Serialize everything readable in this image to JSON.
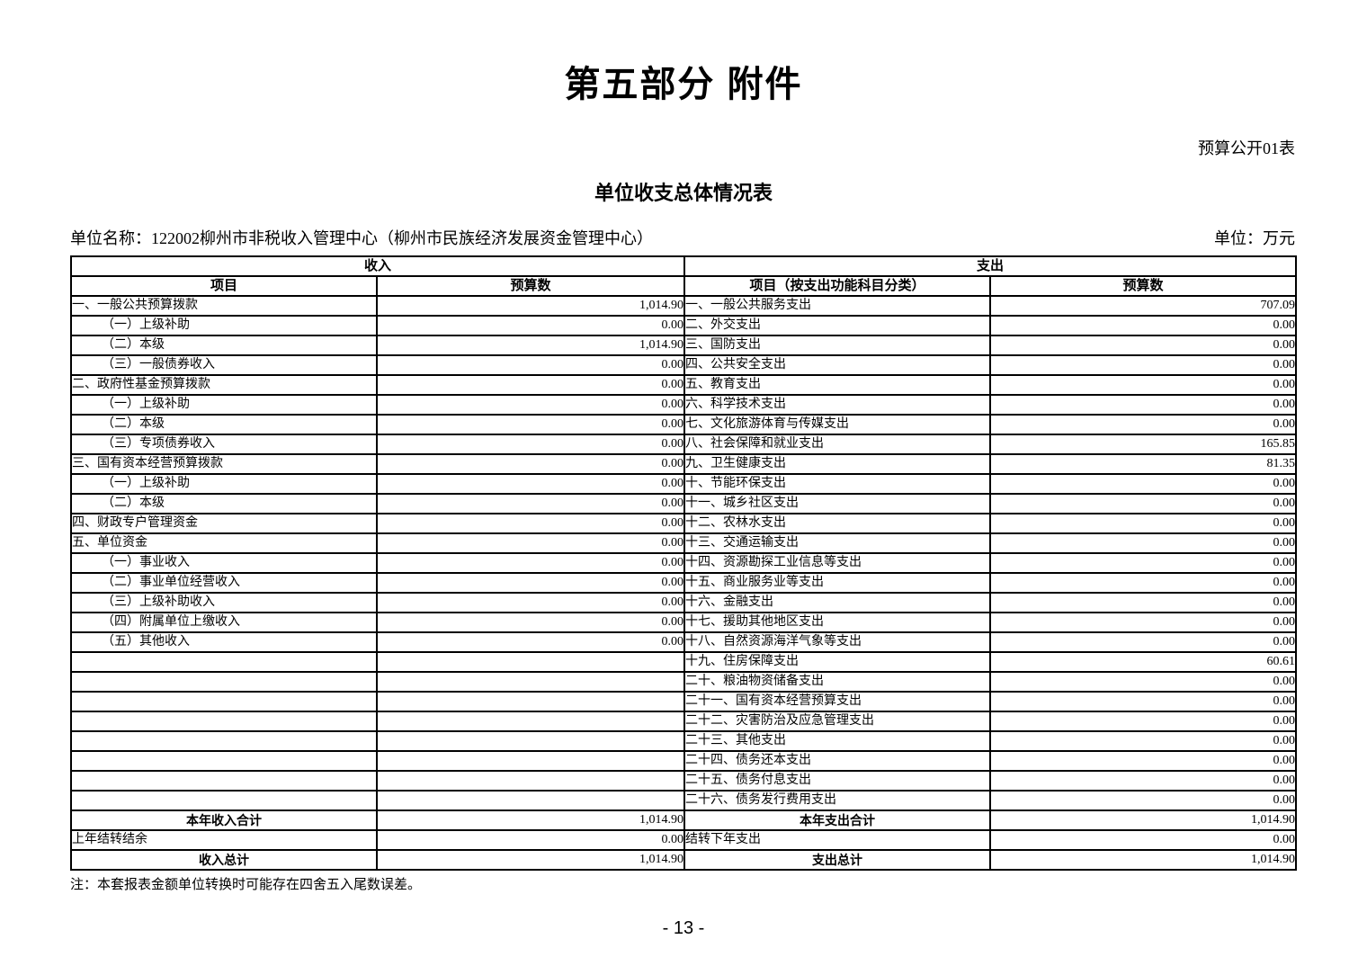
{
  "doc": {
    "section_title": "第五部分  附件",
    "form_label": "预算公开01表",
    "table_title": "单位收支总体情况表",
    "unit_name": "单位名称：122002柳州市非税收入管理中心（柳州市民族经济发展资金管理中心）",
    "unit_of_measure": "单位：万元",
    "footnote": "注：本套报表金额单位转换时可能存在四舍五入尾数误差。",
    "page_number": "- 13 -"
  },
  "table": {
    "sections": {
      "income": "收入",
      "expense": "支出"
    },
    "columns": {
      "income_item": "项目",
      "income_budget": "预算数",
      "expense_item": "项目（按支出功能科目分类）",
      "expense_budget": "预算数"
    },
    "rows": [
      {
        "income_item": "一、一般公共预算拨款",
        "income_value": "1,014.90",
        "expense_item": "一、一般公共服务支出",
        "expense_value": "707.09"
      },
      {
        "income_item": "（一）上级补助",
        "income_value": "0.00",
        "expense_item": "二、外交支出",
        "expense_value": "0.00"
      },
      {
        "income_item": "（二）本级",
        "income_value": "1,014.90",
        "expense_item": "三、国防支出",
        "expense_value": "0.00"
      },
      {
        "income_item": "（三）一般债券收入",
        "income_value": "0.00",
        "expense_item": "四、公共安全支出",
        "expense_value": "0.00"
      },
      {
        "income_item": "二、政府性基金预算拨款",
        "income_value": "0.00",
        "expense_item": "五、教育支出",
        "expense_value": "0.00"
      },
      {
        "income_item": "（一）上级补助",
        "income_value": "0.00",
        "expense_item": "六、科学技术支出",
        "expense_value": "0.00"
      },
      {
        "income_item": "（二）本级",
        "income_value": "0.00",
        "expense_item": "七、文化旅游体育与传媒支出",
        "expense_value": "0.00"
      },
      {
        "income_item": "（三）专项债券收入",
        "income_value": "0.00",
        "expense_item": "八、社会保障和就业支出",
        "expense_value": "165.85"
      },
      {
        "income_item": "三、国有资本经营预算拨款",
        "income_value": "0.00",
        "expense_item": "九、卫生健康支出",
        "expense_value": "81.35"
      },
      {
        "income_item": "（一）上级补助",
        "income_value": "0.00",
        "expense_item": "十、节能环保支出",
        "expense_value": "0.00"
      },
      {
        "income_item": "（二）本级",
        "income_value": "0.00",
        "expense_item": "十一、城乡社区支出",
        "expense_value": "0.00"
      },
      {
        "income_item": "四、财政专户管理资金",
        "income_value": "0.00",
        "expense_item": "十二、农林水支出",
        "expense_value": "0.00"
      },
      {
        "income_item": "五、单位资金",
        "income_value": "0.00",
        "expense_item": "十三、交通运输支出",
        "expense_value": "0.00"
      },
      {
        "income_item": "（一）事业收入",
        "income_value": "0.00",
        "expense_item": "十四、资源勘探工业信息等支出",
        "expense_value": "0.00"
      },
      {
        "income_item": "（二）事业单位经营收入",
        "income_value": "0.00",
        "expense_item": "十五、商业服务业等支出",
        "expense_value": "0.00"
      },
      {
        "income_item": "（三）上级补助收入",
        "income_value": "0.00",
        "expense_item": "十六、金融支出",
        "expense_value": "0.00"
      },
      {
        "income_item": "（四）附属单位上缴收入",
        "income_value": "0.00",
        "expense_item": "十七、援助其他地区支出",
        "expense_value": "0.00"
      },
      {
        "income_item": "（五）其他收入",
        "income_value": "0.00",
        "expense_item": "十八、自然资源海洋气象等支出",
        "expense_value": "0.00"
      },
      {
        "income_item": "",
        "income_value": "",
        "expense_item": "十九、住房保障支出",
        "expense_value": "60.61"
      },
      {
        "income_item": "",
        "income_value": "",
        "expense_item": "二十、粮油物资储备支出",
        "expense_value": "0.00"
      },
      {
        "income_item": "",
        "income_value": "",
        "expense_item": "二十一、国有资本经营预算支出",
        "expense_value": "0.00"
      },
      {
        "income_item": "",
        "income_value": "",
        "expense_item": "二十二、灾害防治及应急管理支出",
        "expense_value": "0.00"
      },
      {
        "income_item": "",
        "income_value": "",
        "expense_item": "二十三、其他支出",
        "expense_value": "0.00"
      },
      {
        "income_item": "",
        "income_value": "",
        "expense_item": "二十四、债务还本支出",
        "expense_value": "0.00"
      },
      {
        "income_item": "",
        "income_value": "",
        "expense_item": "二十五、债务付息支出",
        "expense_value": "0.00"
      },
      {
        "income_item": "",
        "income_value": "",
        "expense_item": "二十六、债务发行费用支出",
        "expense_value": "0.00"
      },
      {
        "income_item": "本年收入合计",
        "income_value": "1,014.90",
        "expense_item": "本年支出合计",
        "expense_value": "1,014.90",
        "emphasis": true
      },
      {
        "income_item": "上年结转结余",
        "income_value": "0.00",
        "expense_item": "结转下年支出",
        "expense_value": "0.00"
      },
      {
        "income_item": "收入总计",
        "income_value": "1,014.90",
        "expense_item": "支出总计",
        "expense_value": "1,014.90",
        "emphasis": true
      }
    ]
  }
}
